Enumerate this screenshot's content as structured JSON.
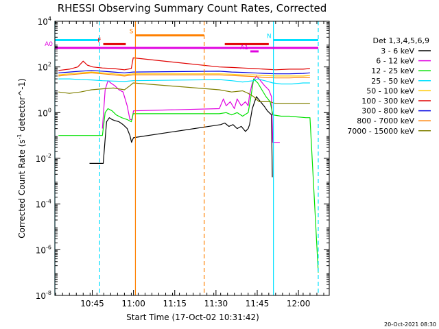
{
  "chart_data": {
    "type": "line",
    "title": "RHESSI Observing Summary Count Rates, Corrected",
    "xlabel": "Start Time (17-Oct-02 10:31:42)",
    "ylabel": "Corrected Count Rate (s^-1 detector^-1)",
    "ylog": true,
    "ylim": [
      1e-08,
      10000
    ],
    "xlim_minutes": [
      -0.3,
      99.5
    ],
    "x_ticks": [
      "10:45",
      "11:00",
      "11:15",
      "11:30",
      "11:45",
      "12:00"
    ],
    "x_tick_minutes": [
      13.3,
      28.3,
      43.3,
      58.3,
      73.3,
      88.3
    ],
    "y_ticks": [
      {
        "value": 10000,
        "base": "10",
        "exp": "4"
      },
      {
        "value": 100,
        "base": "10",
        "exp": "2"
      },
      {
        "value": 1,
        "base": "10",
        "exp": "0"
      },
      {
        "value": 0.01,
        "base": "10",
        "exp": "-2"
      },
      {
        "value": 0.0001,
        "base": "10",
        "exp": "-4"
      },
      {
        "value": 1e-06,
        "base": "10",
        "exp": "-6"
      },
      {
        "value": 1e-08,
        "base": "10",
        "exp": "-8"
      }
    ],
    "legend": {
      "title": "Det 1,3,4,5,6,9",
      "entries": [
        {
          "label": "3 - 6 keV",
          "color": "#000000"
        },
        {
          "label": "6 - 12 keV",
          "color": "#e000e0"
        },
        {
          "label": "12 - 25 keV",
          "color": "#00e000"
        },
        {
          "label": "25 - 50 keV",
          "color": "#00e0ff"
        },
        {
          "label": "50 - 100 keV",
          "color": "#ffc800"
        },
        {
          "label": "100 - 300 keV",
          "color": "#e00000"
        },
        {
          "label": "300 - 800 keV",
          "color": "#0000e0"
        },
        {
          "label": "800 - 7000 keV",
          "color": "#ff8000"
        },
        {
          "label": "7000 - 15000 keV",
          "color": "#808000"
        }
      ]
    },
    "series": [
      {
        "name": "3 - 6 keV",
        "x": [
          12.3,
          17.0,
          17.3,
          17.9,
          18.5,
          19.5,
          20.5,
          21.5,
          23.0,
          24.5,
          26.0,
          27.0,
          27.6,
          28.3,
          60.0,
          61.5,
          63.0,
          64.5,
          66.0,
          67.5,
          69.0,
          70.0,
          70.5,
          71.5,
          73.0,
          74.5,
          76.0,
          77.0,
          78.5,
          78.8
        ],
        "y": [
          0.006,
          0.006,
          0.006,
          0.05,
          0.4,
          0.6,
          0.5,
          0.45,
          0.4,
          0.3,
          0.2,
          0.1,
          0.05,
          0.08,
          0.3,
          0.35,
          0.25,
          0.3,
          0.2,
          0.25,
          0.15,
          0.2,
          0.3,
          1.5,
          5,
          3,
          1.8,
          1.2,
          0.8,
          0.0015
        ]
      },
      {
        "name": "6 - 12 keV",
        "x": [
          17.0,
          18.0,
          19.0,
          20.0,
          21.5,
          23.0,
          24.5,
          26.0,
          27.0,
          27.8,
          28.3,
          59.5,
          61.0,
          62.0,
          63.5,
          65.0,
          66.0,
          67.5,
          69.0,
          70.0,
          70.5,
          71.5,
          73.0,
          74.5,
          76.0,
          77.5,
          78.5,
          79.0,
          80.0,
          81.5
        ],
        "y": [
          0.2,
          10,
          25,
          20,
          15,
          10,
          8,
          2,
          0.5,
          0.5,
          1.2,
          1.5,
          4,
          2,
          3,
          1.5,
          4,
          2,
          3,
          2,
          6,
          20,
          40,
          25,
          15,
          10,
          5,
          0.05,
          0.05,
          0.05
        ]
      },
      {
        "name": "12 - 25 keV",
        "x": [
          1.0,
          13.0,
          17.0,
          18.0,
          19.0,
          20.5,
          22.0,
          24.0,
          26.0,
          27.5,
          28.2,
          59.5,
          62.0,
          64.0,
          66.0,
          68.0,
          70.0,
          71.0,
          72.0,
          73.5,
          75.0,
          76.5,
          78.0,
          79.0,
          82.0,
          85.0,
          88.0,
          91.0,
          92.5,
          95.5
        ],
        "y": [
          0.1,
          0.1,
          0.1,
          1.0,
          1.5,
          1.2,
          0.8,
          0.6,
          0.5,
          0.4,
          0.9,
          0.9,
          1.0,
          0.8,
          1.0,
          0.7,
          1.0,
          5,
          30,
          20,
          10,
          5,
          3,
          0.8,
          0.7,
          0.7,
          0.65,
          0.6,
          0.6,
          1e-07
        ]
      },
      {
        "name": "25 - 50 keV",
        "x": [
          1.0,
          5.0,
          9.0,
          13.0,
          17.0,
          21.0,
          25.0,
          28.2,
          59.5,
          64.0,
          68.0,
          72.0,
          73.5,
          76.0,
          79.0,
          82.0,
          86.0,
          90.0,
          92.5
        ],
        "y": [
          30,
          30,
          28,
          27,
          25,
          24,
          23,
          25,
          28,
          25,
          22,
          25,
          30,
          25,
          20,
          18,
          18,
          20,
          20
        ]
      },
      {
        "name": "50 - 100 keV",
        "x": [
          1.0,
          5.0,
          9.0,
          13.0,
          17.0,
          21.0,
          25.0,
          28.2,
          59.5,
          64.0,
          68.0,
          72.0,
          76.0,
          80.0,
          85.0,
          90.0,
          92.5
        ],
        "y": [
          45,
          50,
          55,
          60,
          55,
          50,
          45,
          50,
          50,
          48,
          45,
          45,
          42,
          40,
          40,
          40,
          42
        ]
      },
      {
        "name": "100 - 300 keV",
        "x": [
          1.0,
          5.0,
          8.0,
          10.0,
          11.5,
          13.5,
          17.0,
          21.0,
          25.0,
          27.5,
          28.2,
          59.5,
          64.0,
          68.0,
          72.0,
          76.0,
          80.0,
          85.0,
          90.0,
          92.5
        ],
        "y": [
          70,
          80,
          100,
          180,
          120,
          100,
          90,
          85,
          75,
          85,
          250,
          100,
          95,
          90,
          85,
          80,
          75,
          80,
          80,
          85
        ]
      },
      {
        "name": "300 - 800 keV",
        "x": [
          1.0,
          5.0,
          9.0,
          13.0,
          17.0,
          21.0,
          25.0,
          28.2,
          59.5,
          64.0,
          68.0,
          72.0,
          76.0,
          80.0,
          85.0,
          90.0,
          92.5
        ],
        "y": [
          55,
          60,
          65,
          70,
          65,
          60,
          55,
          60,
          65,
          60,
          58,
          55,
          52,
          50,
          50,
          52,
          55
        ]
      },
      {
        "name": "800 - 7000 keV",
        "x": [
          1.0,
          5.0,
          9.0,
          13.0,
          17.0,
          21.0,
          25.0,
          28.2,
          59.5,
          64.0,
          68.0,
          72.0,
          76.0,
          80.0,
          85.0,
          90.0,
          92.5
        ],
        "y": [
          40,
          45,
          50,
          55,
          50,
          45,
          40,
          45,
          45,
          42,
          40,
          38,
          35,
          33,
          33,
          35,
          35
        ]
      },
      {
        "name": "7000 - 15000 keV",
        "x": [
          1.0,
          5.0,
          9.0,
          13.0,
          17.0,
          21.0,
          25.0,
          27.0,
          28.2,
          59.5,
          64.0,
          68.0,
          70.0,
          72.0,
          74.0,
          76.0,
          78.0,
          80.0,
          85.0,
          90.0,
          92.5
        ],
        "y": [
          8,
          7,
          8,
          10,
          11,
          12,
          10,
          15,
          20,
          10,
          8,
          9,
          7,
          5,
          3,
          3,
          3,
          2.5,
          2.5,
          2.5,
          2.5
        ]
      }
    ],
    "annotations": {
      "vertical_lines": [
        {
          "minute": -0.3,
          "color": "#00e0ff",
          "dashed": false
        },
        {
          "minute": 16.0,
          "color": "#00e0ff",
          "dashed": true
        },
        {
          "minute": 29.0,
          "color": "#ff8000",
          "dashed": false
        },
        {
          "minute": 54.0,
          "color": "#ff8000",
          "dashed": true
        },
        {
          "minute": 79.2,
          "color": "#00e0ff",
          "dashed": false
        },
        {
          "minute": 95.5,
          "color": "#00e0ff",
          "dashed": true
        }
      ],
      "bars": [
        {
          "label": "",
          "color": "#00e0ff",
          "x0": -0.3,
          "x1": 16.0,
          "y": 1500
        },
        {
          "label": "N",
          "color": "#00e0ff",
          "x0": 79.2,
          "x1": 95.5,
          "y": 1500
        },
        {
          "label": "S",
          "color": "#ff8000",
          "x0": 29.0,
          "x1": 54.0,
          "y": 2400
        },
        {
          "label": "F",
          "color": "#e00000",
          "x0": 17.3,
          "x1": 25.5,
          "y": 1000
        },
        {
          "label": "",
          "color": "#e00000",
          "x0": 61.5,
          "x1": 77.5,
          "y": 1000
        },
        {
          "label": "A0",
          "color": "#e000e0",
          "x0": -0.3,
          "x1": 95.5,
          "y": 680
        },
        {
          "label": "A1",
          "color": "#e000e0",
          "x0": 70.8,
          "x1": 73.8,
          "y": 480
        }
      ]
    }
  },
  "footer": {
    "timestamp": "20-Oct-2021 08:30"
  }
}
